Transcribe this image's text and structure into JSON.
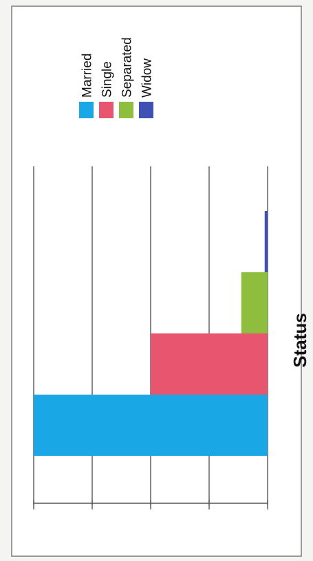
{
  "chart_data": {
    "type": "bar",
    "orientation": "horizontal",
    "title": "",
    "xlabel": "",
    "ylabel": "Status",
    "grid": true,
    "legend_position": "top",
    "xlim": [
      0,
      4
    ],
    "categories": [
      "Status"
    ],
    "series": [
      {
        "name": "Married",
        "values": [
          4.0
        ],
        "color": "#1aa7e6"
      },
      {
        "name": "Single",
        "values": [
          2.0
        ],
        "color": "#e8556f"
      },
      {
        "name": "Separated",
        "values": [
          0.45
        ],
        "color": "#8fbd3e"
      },
      {
        "name": "Widow",
        "values": [
          0.05
        ],
        "color": "#3f51b5"
      }
    ]
  }
}
